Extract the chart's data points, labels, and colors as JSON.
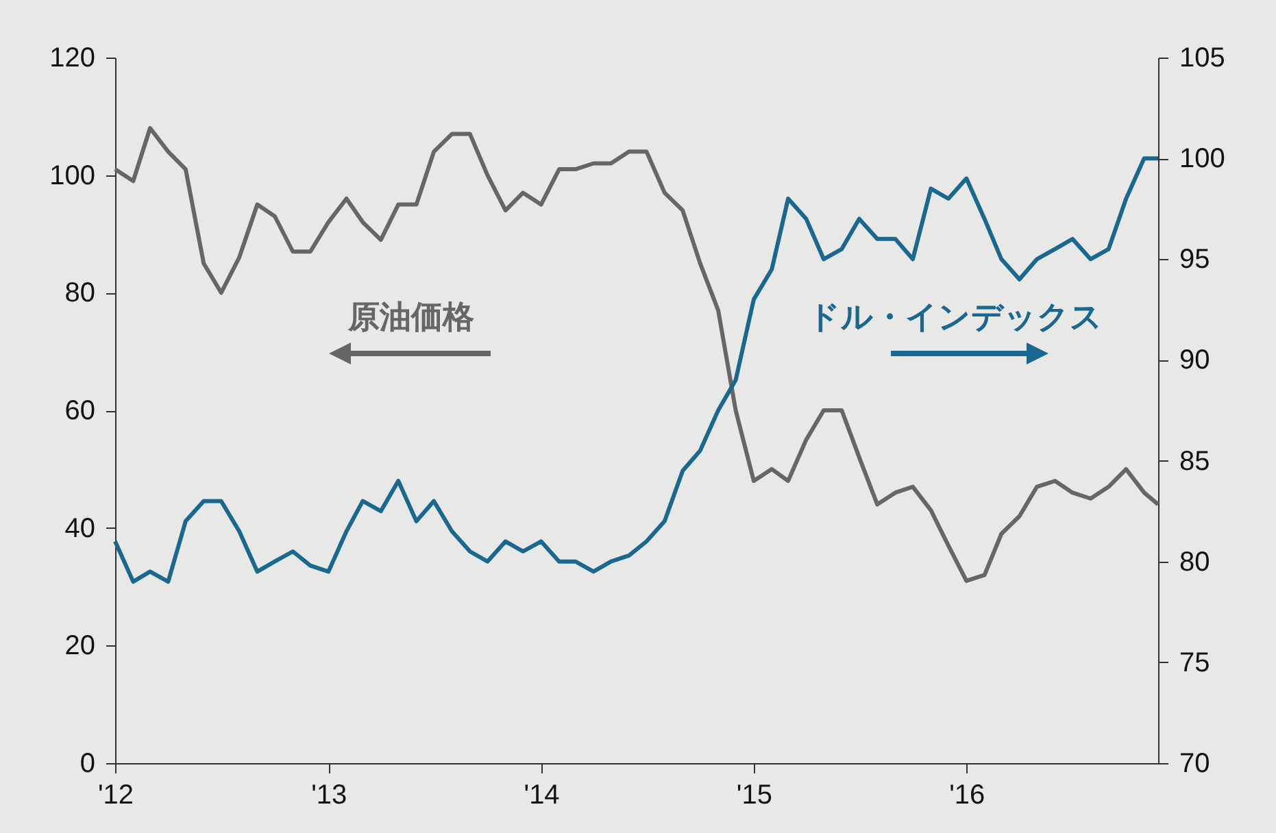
{
  "chart_data": {
    "type": "line",
    "x": [
      "2012-01-01",
      "2012-02-01",
      "2012-03-01",
      "2012-04-01",
      "2012-05-01",
      "2012-06-01",
      "2012-07-01",
      "2012-08-01",
      "2012-09-01",
      "2012-10-01",
      "2012-11-01",
      "2012-12-01",
      "2013-01-01",
      "2013-02-01",
      "2013-03-01",
      "2013-04-01",
      "2013-05-01",
      "2013-06-01",
      "2013-07-01",
      "2013-08-01",
      "2013-09-01",
      "2013-10-01",
      "2013-11-01",
      "2013-12-01",
      "2014-01-01",
      "2014-02-01",
      "2014-03-01",
      "2014-04-01",
      "2014-05-01",
      "2014-06-01",
      "2014-07-01",
      "2014-08-01",
      "2014-09-01",
      "2014-10-01",
      "2014-11-01",
      "2014-12-01",
      "2015-01-01",
      "2015-02-01",
      "2015-03-01",
      "2015-04-01",
      "2015-05-01",
      "2015-06-01",
      "2015-07-01",
      "2015-08-01",
      "2015-09-01",
      "2015-10-01",
      "2015-11-01",
      "2015-12-01",
      "2016-01-01",
      "2016-02-01",
      "2016-03-01",
      "2016-04-01",
      "2016-05-01",
      "2016-06-01",
      "2016-07-01",
      "2016-08-01",
      "2016-09-01",
      "2016-10-01",
      "2016-11-01",
      "2016-11-25"
    ],
    "series": [
      {
        "color": "#666666",
        "values": [
          101,
          99,
          108,
          104,
          101,
          85,
          80,
          86,
          95,
          93,
          87,
          87,
          92,
          96,
          92,
          89,
          95,
          95,
          104,
          107,
          107,
          100,
          94,
          97,
          95,
          101,
          101,
          102,
          102,
          104,
          104,
          97,
          94,
          85,
          77,
          60,
          48,
          50,
          48,
          55,
          60,
          60,
          52,
          44,
          46,
          47,
          43,
          37,
          31,
          32,
          39,
          42,
          47,
          48,
          46,
          45,
          47,
          50,
          46,
          44
        ]
      },
      {
        "color": "#1a6890",
        "axis": "y2",
        "values": [
          81,
          79,
          79.5,
          79,
          82,
          83,
          83,
          81.5,
          79.5,
          80,
          80.5,
          79.8,
          79.5,
          81.5,
          83,
          82.5,
          84,
          82,
          83,
          81.5,
          80.5,
          80,
          81,
          80.5,
          81,
          80,
          80,
          79.5,
          80,
          80.3,
          81,
          82,
          84.5,
          85.5,
          87.5,
          89,
          93,
          94.5,
          98,
          97,
          95,
          95.5,
          97,
          96,
          96,
          95,
          98.5,
          98,
          99,
          97,
          95,
          94,
          95,
          95.5,
          96,
          95,
          95.5,
          98,
          100,
          100
        ]
      }
    ],
    "annotations": [
      "原油価格",
      "ドル・インデックス"
    ],
    "xlim": [
      "2012-01-01",
      "2016-11-25"
    ],
    "xticks": [
      {
        "value": "2012-01-01",
        "label": "'12"
      },
      {
        "value": "2013-01-01",
        "label": "'13"
      },
      {
        "value": "2014-01-01",
        "label": "'14"
      },
      {
        "value": "2015-01-01",
        "label": "'15"
      },
      {
        "value": "2016-01-01",
        "label": "'16"
      }
    ],
    "ylim": [
      0,
      120
    ],
    "yticks": [
      0,
      20,
      40,
      60,
      80,
      100,
      120
    ],
    "y2lim": [
      70,
      105
    ],
    "y2ticks": [
      70,
      75,
      80,
      85,
      90,
      95,
      100,
      105
    ],
    "grid": false
  }
}
